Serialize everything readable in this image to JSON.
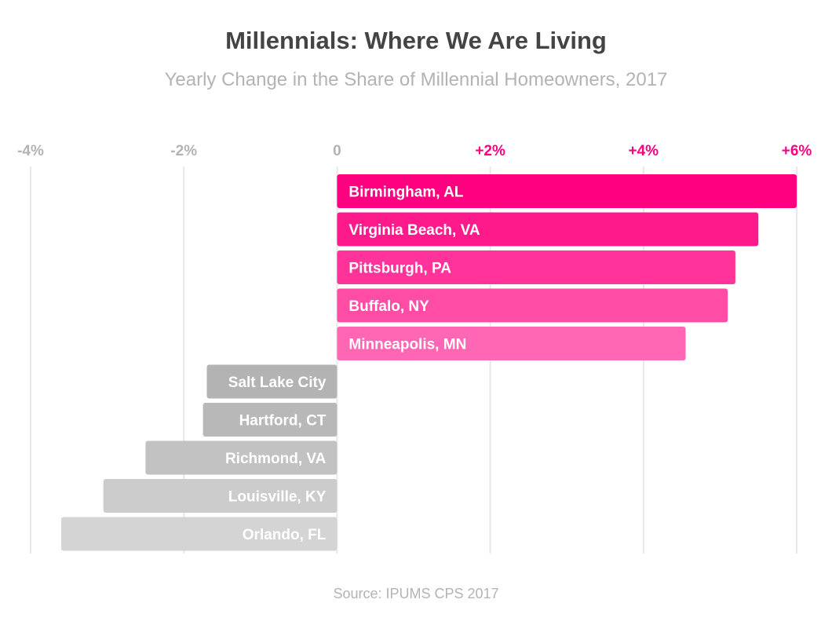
{
  "title": "Millennials: Where We Are Living",
  "subtitle": "Yearly Change in the Share of Millennial Homeowners, 2017",
  "source": "Source: IPUMS CPS 2017",
  "colors": {
    "positive": [
      "#ff0080",
      "#ff1a8c",
      "#ff3399",
      "#ff4da6",
      "#ff66b3"
    ],
    "negative": [
      "#b3b3b3",
      "#b8b8b8",
      "#c2c2c2",
      "#cccccc",
      "#d4d4d4"
    ],
    "tick_positive": "#ff0080",
    "tick_negative": "#b3b3b3",
    "grid": "#e8e8e8"
  },
  "chart_data": {
    "type": "bar",
    "orientation": "horizontal",
    "title": "Millennials: Where We Are Living",
    "subtitle": "Yearly Change in the Share of Millennial Homeowners, 2017",
    "categories": [
      "Birmingham, AL",
      "Virginia Beach, VA",
      "Pittsburgh, PA",
      "Buffalo, NY",
      "Minneapolis, MN",
      "Salt Lake City",
      "Hartford, CT",
      "Richmond, VA",
      "Louisville, KY",
      "Orlando, FL"
    ],
    "values": [
      6.0,
      5.5,
      5.2,
      5.1,
      4.55,
      -1.7,
      -1.75,
      -2.5,
      -3.05,
      -3.6
    ],
    "xlim": [
      -4,
      6
    ],
    "ticks": [
      -4,
      -2,
      0,
      2,
      4,
      6
    ],
    "tick_labels": [
      "-4%",
      "-2%",
      "0",
      "+2%",
      "+4%",
      "+6%"
    ],
    "grid": true,
    "xlabel": "",
    "ylabel": ""
  }
}
